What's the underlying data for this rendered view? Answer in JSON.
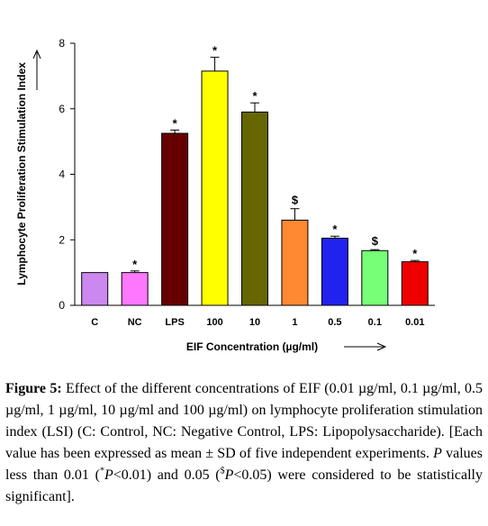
{
  "chart_data": {
    "type": "bar",
    "ylabel": "Lymphocyte Proliferation Stimulation Index",
    "xlabel": "EIF Concentration (µg/ml)",
    "ylim": [
      0,
      8
    ],
    "yticks": [
      "0",
      "2",
      "4",
      "6",
      "8"
    ],
    "categories": [
      "C",
      "NC",
      "LPS",
      "100",
      "10",
      "1",
      "0.5",
      "0.1",
      "0.01"
    ],
    "values": [
      1.0,
      1.0,
      5.25,
      7.15,
      5.9,
      2.6,
      2.05,
      1.67,
      1.33
    ],
    "errors": [
      0,
      0.05,
      0.1,
      0.42,
      0.28,
      0.35,
      0.06,
      0.03,
      0.04
    ],
    "significance": [
      "",
      "*",
      "*",
      "*",
      "*",
      "$",
      "*",
      "$",
      "*"
    ],
    "colors": [
      "#cc88ee",
      "#ff77ff",
      "#660000",
      "#ffff00",
      "#666600",
      "#ff8833",
      "#2222ee",
      "#77ff77",
      "#ee0000"
    ],
    "grid": false,
    "legend": "none"
  },
  "caption": {
    "label": "Figure 5:",
    "text1": " Effect of the different concentrations of EIF (0.01 µg/ml, 0.1 µg/ml, 0.5 µg/ml, 1 µg/ml, 10 µg/ml and 100 µg/ml) on lymphocyte proliferation stimulation index (LSI) (C: Control, NC: Negative Control, LPS: Lipopolysaccharide). [Each value has been expressed as mean ± SD of five independent experiments. ",
    "p1": "P",
    "text2": " values less than 0.01 (",
    "sup1": "*",
    "p2": "P",
    "text3": "<0.01) and 0.05 (",
    "sup2": "$",
    "p3": "P",
    "text4": "<0.05) were considered to be statistically significant]."
  }
}
